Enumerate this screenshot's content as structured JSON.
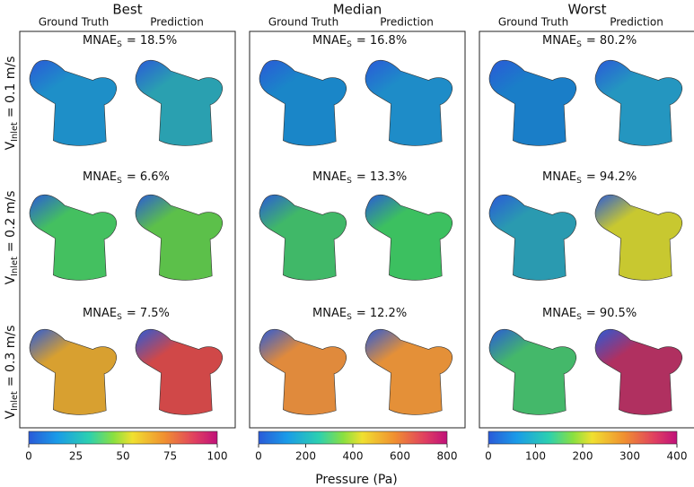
{
  "panels": [
    {
      "title": "Best",
      "columns": [
        "Ground Truth",
        "Prediction"
      ],
      "metrics": [
        {
          "symbol": "MNAE",
          "subscript": "S",
          "rest": "= 18.5%"
        },
        {
          "symbol": "MNAE",
          "subscript": "S",
          "rest": "= 6.6%"
        },
        {
          "symbol": "MNAE",
          "subscript": "S",
          "rest": "= 7.5%"
        }
      ],
      "colorbar_ticks": [
        "0",
        "25",
        "50",
        "75",
        "100"
      ]
    },
    {
      "title": "Median",
      "columns": [
        "Ground Truth",
        "Prediction"
      ],
      "metrics": [
        {
          "symbol": "MNAE",
          "subscript": "S",
          "rest": "= 16.8%"
        },
        {
          "symbol": "MNAE",
          "subscript": "S",
          "rest": "= 13.3%"
        },
        {
          "symbol": "MNAE",
          "subscript": "S",
          "rest": "= 12.2%"
        }
      ],
      "colorbar_ticks": [
        "0",
        "200",
        "400",
        "600",
        "800"
      ]
    },
    {
      "title": "Worst",
      "columns": [
        "Ground Truth",
        "Prediction"
      ],
      "metrics": [
        {
          "symbol": "MNAE",
          "subscript": "S",
          "rest": "= 80.2%"
        },
        {
          "symbol": "MNAE",
          "subscript": "S",
          "rest": "= 94.2%"
        },
        {
          "symbol": "MNAE",
          "subscript": "S",
          "rest": "= 90.5%"
        }
      ],
      "colorbar_ticks": [
        "0",
        "100",
        "200",
        "300",
        "400"
      ]
    }
  ],
  "row_labels": [
    {
      "symbol": "V",
      "subscript": "Inlet",
      "rest": "= 0.1 m/s"
    },
    {
      "symbol": "V",
      "subscript": "Inlet",
      "rest": "= 0.2 m/s"
    },
    {
      "symbol": "V",
      "subscript": "Inlet",
      "rest": "= 0.3 m/s"
    }
  ],
  "colorbar_label": "Pressure (Pa)"
}
